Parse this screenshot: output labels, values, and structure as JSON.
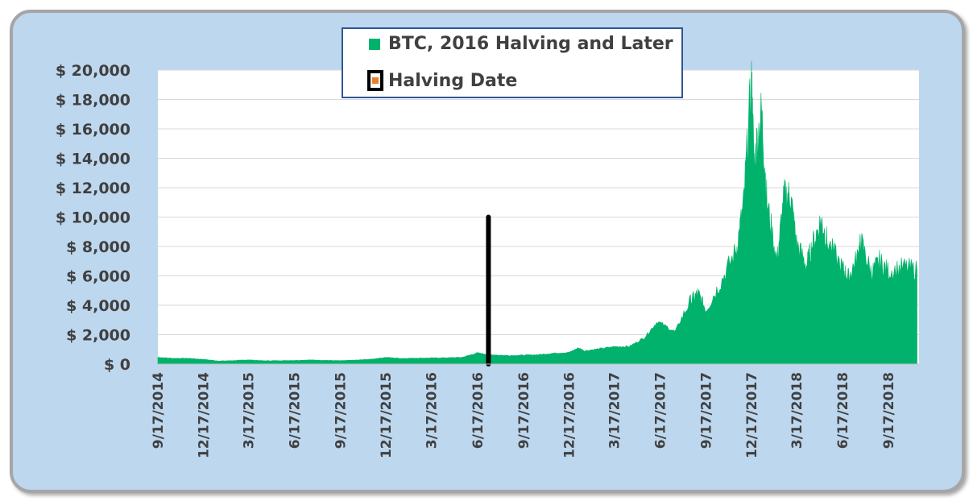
{
  "colors": {
    "background_panel": "#bdd7ee",
    "btc_fill": "#00b26b",
    "halving_line": "#000000",
    "halving_marker": "#ed7d31",
    "grid": "#d9d9d9",
    "text": "#404040",
    "legend_border": "#2f5597"
  },
  "legend": {
    "position": "top-center",
    "items": [
      {
        "label": "BTC, 2016 Halving and Later",
        "swatch": "btc_fill"
      },
      {
        "label": "Halving Date",
        "swatch": "halving_marker"
      }
    ]
  },
  "chart_data": {
    "type": "area",
    "title": "",
    "xlabel": "",
    "ylabel": "",
    "ylim": [
      0,
      20000
    ],
    "grid": true,
    "x_range": [
      "2014-09-17",
      "2018-11-17"
    ],
    "y_ticks": [
      "$ 0",
      "$ 2,000",
      "$ 4,000",
      "$ 6,000",
      "$ 8,000",
      "$ 10,000",
      "$ 12,000",
      "$ 14,000",
      "$ 16,000",
      "$ 18,000",
      "$ 20,000"
    ],
    "x_ticks": [
      "9/17/2014",
      "12/17/2014",
      "3/17/2015",
      "6/17/2015",
      "9/17/2015",
      "12/17/2015",
      "3/17/2016",
      "6/17/2016",
      "9/17/2016",
      "12/17/2016",
      "3/17/2017",
      "6/17/2017",
      "9/17/2017",
      "12/17/2017",
      "3/17/2018",
      "6/17/2018",
      "9/17/2018"
    ],
    "series": [
      {
        "name": "BTC, 2016 Halving and Later",
        "type": "area",
        "points": [
          [
            "2014-09-17",
            460
          ],
          [
            "2014-10-17",
            390
          ],
          [
            "2014-11-17",
            390
          ],
          [
            "2014-12-17",
            320
          ],
          [
            "2015-01-17",
            210
          ],
          [
            "2015-02-17",
            240
          ],
          [
            "2015-03-17",
            285
          ],
          [
            "2015-04-17",
            225
          ],
          [
            "2015-05-17",
            235
          ],
          [
            "2015-06-17",
            248
          ],
          [
            "2015-07-17",
            280
          ],
          [
            "2015-08-17",
            255
          ],
          [
            "2015-09-17",
            230
          ],
          [
            "2015-10-17",
            265
          ],
          [
            "2015-11-17",
            330
          ],
          [
            "2015-12-17",
            455
          ],
          [
            "2016-01-17",
            385
          ],
          [
            "2016-02-17",
            405
          ],
          [
            "2016-03-17",
            415
          ],
          [
            "2016-04-17",
            430
          ],
          [
            "2016-05-17",
            455
          ],
          [
            "2016-06-17",
            760
          ],
          [
            "2016-07-09",
            650
          ],
          [
            "2016-08-17",
            580
          ],
          [
            "2016-09-17",
            605
          ],
          [
            "2016-10-17",
            640
          ],
          [
            "2016-11-17",
            740
          ],
          [
            "2016-12-17",
            790
          ],
          [
            "2017-01-05",
            1100
          ],
          [
            "2017-01-17",
            900
          ],
          [
            "2017-02-17",
            1050
          ],
          [
            "2017-03-17",
            1180
          ],
          [
            "2017-04-17",
            1200
          ],
          [
            "2017-05-17",
            1800
          ],
          [
            "2017-06-12",
            2900
          ],
          [
            "2017-07-17",
            2200
          ],
          [
            "2017-08-17",
            4300
          ],
          [
            "2017-09-01",
            4800
          ],
          [
            "2017-09-17",
            3700
          ],
          [
            "2017-10-17",
            5600
          ],
          [
            "2017-11-17",
            7800
          ],
          [
            "2017-12-01",
            10800
          ],
          [
            "2017-12-17",
            19400
          ],
          [
            "2017-12-22",
            13800
          ],
          [
            "2018-01-06",
            17200
          ],
          [
            "2018-01-17",
            11000
          ],
          [
            "2018-02-06",
            7000
          ],
          [
            "2018-02-20",
            11400
          ],
          [
            "2018-03-05",
            11500
          ],
          [
            "2018-03-17",
            8200
          ],
          [
            "2018-04-06",
            6700
          ],
          [
            "2018-04-17",
            8000
          ],
          [
            "2018-05-05",
            9800
          ],
          [
            "2018-05-17",
            8400
          ],
          [
            "2018-06-17",
            6500
          ],
          [
            "2018-06-29",
            5900
          ],
          [
            "2018-07-17",
            7300
          ],
          [
            "2018-07-24",
            8300
          ],
          [
            "2018-08-14",
            6200
          ],
          [
            "2018-08-30",
            7000
          ],
          [
            "2018-09-17",
            6300
          ],
          [
            "2018-10-17",
            6600
          ],
          [
            "2018-11-13",
            6400
          ]
        ]
      },
      {
        "name": "Halving Date",
        "type": "vertical-line",
        "x": "2016-07-09",
        "y": 10000
      }
    ]
  }
}
